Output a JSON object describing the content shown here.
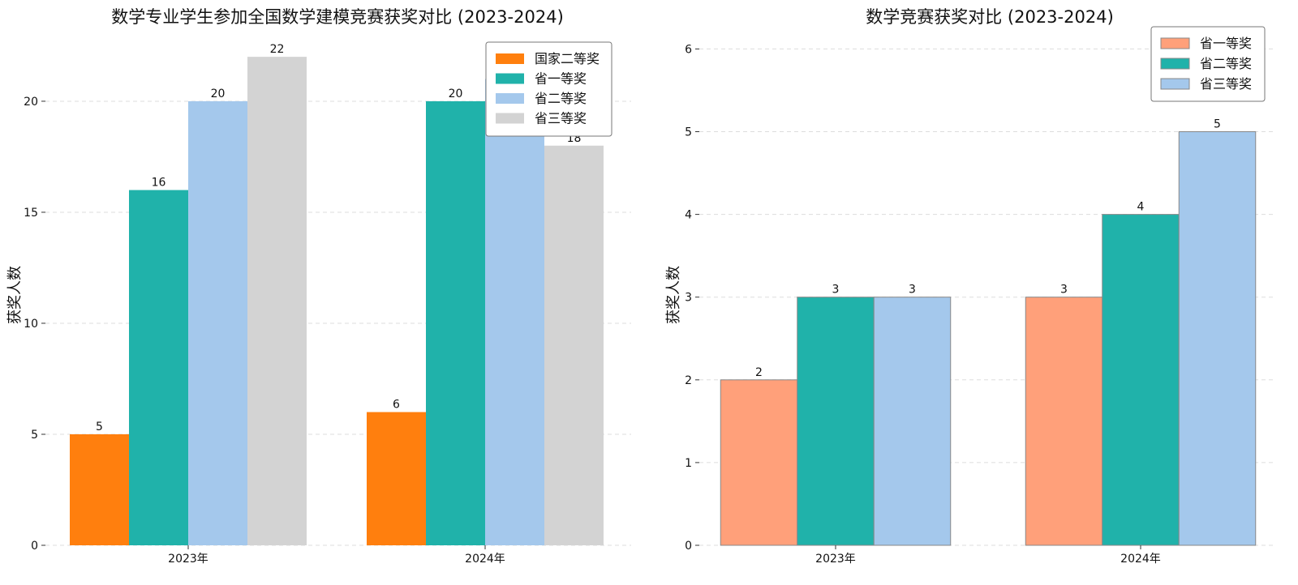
{
  "chart_data": [
    {
      "type": "bar",
      "title": "数学专业学生参加全国数学建模竞赛获奖对比 (2023-2024)",
      "xlabel": "",
      "ylabel": "获奖人数",
      "categories": [
        "2023年",
        "2024年"
      ],
      "series": [
        {
          "name": "国家二等奖",
          "values": [
            5,
            6
          ],
          "color": "#ff7f0e"
        },
        {
          "name": "省一等奖",
          "values": [
            16,
            20
          ],
          "color": "#20b2aa"
        },
        {
          "name": "省二等奖",
          "values": [
            20,
            21
          ],
          "color": "#a4c8ec"
        },
        {
          "name": "省三等奖",
          "values": [
            22,
            18
          ],
          "color": "#d3d3d3"
        }
      ],
      "ylim": [
        0,
        23.1
      ],
      "yticks": [
        0,
        5,
        10,
        15,
        20
      ],
      "grid": true,
      "legend": "top-right"
    },
    {
      "type": "bar",
      "title": "数学竞赛获奖对比 (2023-2024)",
      "xlabel": "",
      "ylabel": "获奖人数",
      "categories": [
        "2023年",
        "2024年"
      ],
      "series": [
        {
          "name": "省一等奖",
          "values": [
            2,
            3
          ],
          "color": "#ffa07a"
        },
        {
          "name": "省二等奖",
          "values": [
            3,
            4
          ],
          "color": "#20b2aa"
        },
        {
          "name": "省三等奖",
          "values": [
            3,
            5
          ],
          "color": "#a4c8ec"
        }
      ],
      "ylim": [
        0,
        6.2
      ],
      "yticks": [
        0,
        1,
        2,
        3,
        4,
        5,
        6
      ],
      "grid": true,
      "legend": "top-right"
    }
  ]
}
